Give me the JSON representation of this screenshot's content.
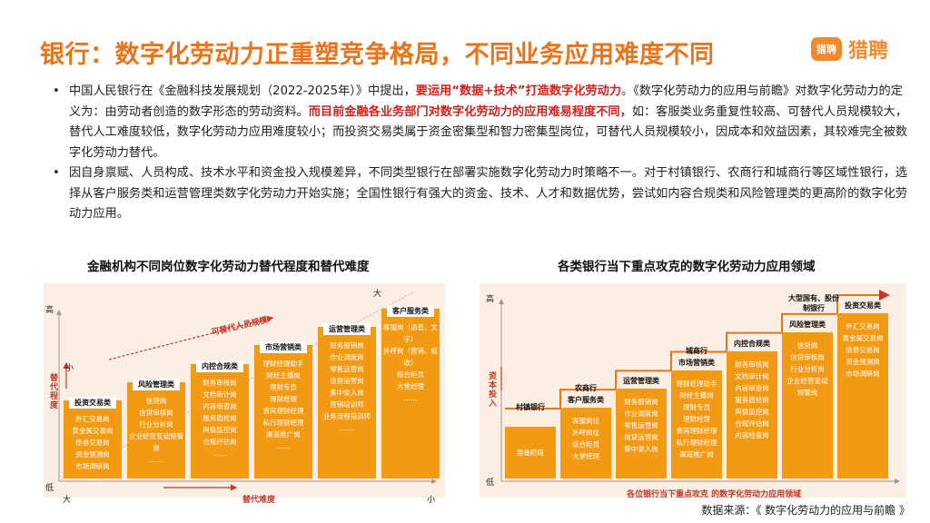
{
  "title": "银行：数字化劳动力正重塑竞争格局，不同业务应用难度不同",
  "logo": {
    "badge": "猎聘",
    "text": "猎聘"
  },
  "bullets": [
    {
      "segments": [
        "中国人民银行在《金融科技发展规划（2022-2025年）》中提出，",
        "要运用“数据+技术”打造数字化劳动力",
        "。《数字化劳动力的应用与前瞻》对数字化劳动力的定义为：由劳动者创造的数字形态的劳动资料。",
        "而目前金融各业务部门对数字化劳动力的应用难易程度不同，",
        "如：客服类业务重复性较高、可替代人员规模较大，替代人工难度较低，数字化劳动力应用难度较小；而投资交易类属于资金密集型和智力密集型岗位，可替代人员规模较小，因成本和效益因素，其较难完全被数字化劳动力替代。"
      ]
    },
    {
      "text": "因自身禀赋、人员构成、技术水平和资金投入规模差异，不同类型银行在部署实施数字化劳动力时策略不一。对于村镇银行、农商行和城商行等区域性银行，选择从客户服务类和运营管理类数字化劳动力开始实施；全国性银行有强大的资金、技术、人才和数据优势，尝试如内容合规类和风险管理类的更高阶的数字化劳动力应用。"
    }
  ],
  "left_chart": {
    "title": "金融机构不同岗位数字化劳动力替代程度和替代难度",
    "y_axis": {
      "high": "高",
      "low": "低",
      "name": "替代程度",
      "small": "小"
    },
    "x_axis": {
      "left": "大",
      "right": "小",
      "name": "替代难度"
    },
    "top_right_label": "大",
    "arrow_label": "可替代人员规模",
    "steps": [
      {
        "name": "投资交易类",
        "items": [
          "外汇交易岗",
          "黄金属交易岗",
          "债券交易岗",
          "资金预测岗",
          "市场调研岗",
          "……"
        ]
      },
      {
        "name": "风险管理类",
        "items": [
          "信贷岗",
          "信贷审核岗",
          "行业分析岗",
          "企业经营变动预警岗",
          "……"
        ]
      },
      {
        "name": "内控合规类",
        "items": [
          "财务审核岗",
          "文档审计岗",
          "内容审查岗",
          "服务质检岗",
          "舆情监控岗",
          "合规评估岗",
          "……"
        ]
      },
      {
        "name": "市场营销类",
        "items": [
          "理财经理助手",
          "财经主播岗",
          "理财专员",
          "理财经理",
          "贵宾理财经理",
          "私行理财经理",
          "渠道推广岗",
          "……"
        ]
      },
      {
        "name": "运营管理类",
        "items": [
          "财务报销岗",
          "作业调度岗",
          "零售运营岗",
          "信贷运营岗",
          "集中录入岗",
          "营销培训师",
          "业务流程培训师",
          "……"
        ]
      },
      {
        "name": "客户服务类",
        "items": [
          "客服岗（语音、文字）",
          "外呼岗（营销、催收）",
          "综合柜员",
          "大堂经理",
          "……"
        ]
      }
    ]
  },
  "right_chart": {
    "title": "各类银行当下重点攻克的数字化劳动力应用领域",
    "y_axis": {
      "high": "高",
      "low": "低",
      "name": "资本投入"
    },
    "bottom_caption": "各位银行当下重点攻克 的数字化劳动力应用领域",
    "banks": [
      "村镇银行",
      "农商行",
      "城商行",
      "大型国有、股份制银行"
    ],
    "steps": [
      {
        "name": "",
        "items": [
          "准备阶段"
        ]
      },
      {
        "name": "客户服务类",
        "items": [
          "客服岗位",
          "外呼岗位",
          "综合柜员",
          "大堂经理"
        ]
      },
      {
        "name": "运营管理类",
        "items": [
          "财务报销岗",
          "作业调度岗",
          "零售运营岗",
          "信贷运营岗",
          "集中录入岗"
        ]
      },
      {
        "name": "市场营销类",
        "items": [
          "理财经理助手",
          "财经主播岗",
          "理财专员",
          "理财经理",
          "贵宾理财经理",
          "私行理财经理",
          "渠道推广岗"
        ]
      },
      {
        "name": "内控合规类",
        "items": [
          "财务审核岗",
          "文档审计岗",
          "内容审查岗",
          "服务质检岗",
          "舆情监控岗",
          "合规评估岗",
          "内容检查岗"
        ]
      },
      {
        "name": "风险管理类",
        "items": [
          "信贷岗",
          "信贷审核岗",
          "行业分析岗",
          "企业经营变动",
          "预警岗"
        ]
      },
      {
        "name": "投资交易类",
        "items": [
          "外汇交易岗",
          "黄金属交易岗",
          "债券交易岗",
          "资金预测岗",
          "市场调研岗"
        ]
      }
    ]
  },
  "source": "数据来源：《 数字化劳动力的应用与前瞻 》"
}
